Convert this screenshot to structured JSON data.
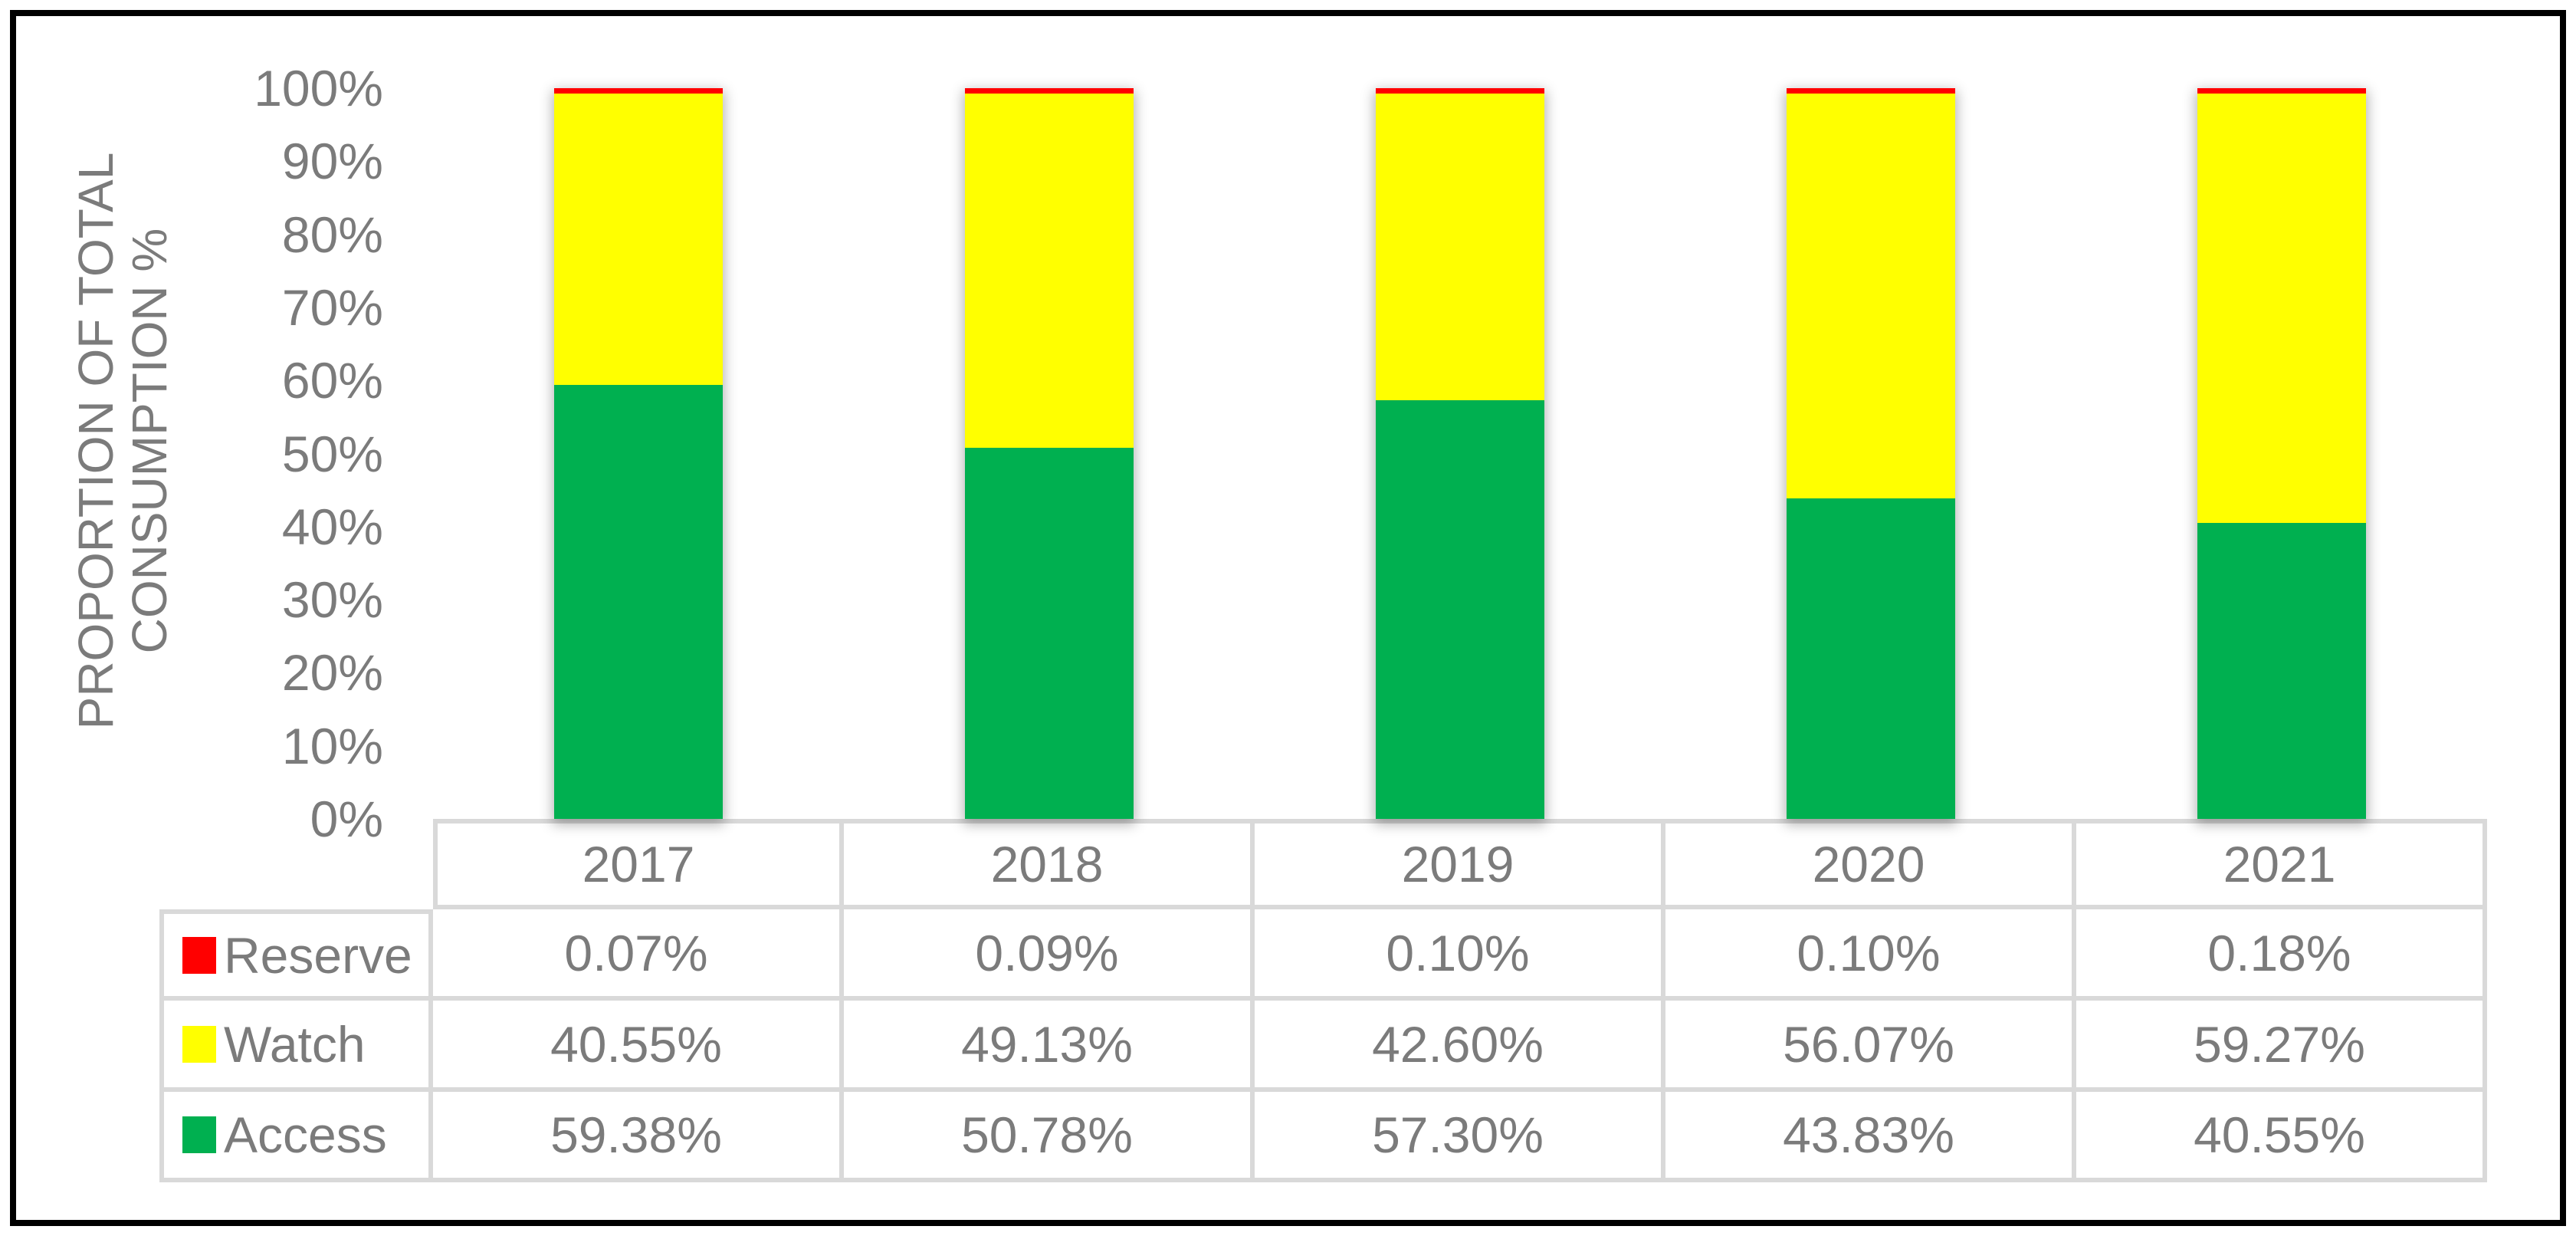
{
  "chart_data": {
    "type": "bar",
    "stacked": true,
    "stack_unit": "percent",
    "title": "",
    "xlabel": "",
    "ylabel": "PROPORTION OF TOTAL CONSUMPTION %",
    "ylabel_lines": [
      "PROPORTION OF TOTAL",
      "CONSUMPTION %"
    ],
    "ylim": [
      0,
      100
    ],
    "ytick_labels": [
      "100%",
      "90%",
      "80%",
      "70%",
      "60%",
      "50%",
      "40%",
      "30%",
      "20%",
      "10%",
      "0%"
    ],
    "grid": false,
    "legend_position": "data-table-left",
    "categories": [
      "2017",
      "2018",
      "2019",
      "2020",
      "2021"
    ],
    "series": [
      {
        "name": "Reserve",
        "color": "#FF0000",
        "values": [
          0.07,
          0.09,
          0.1,
          0.1,
          0.18
        ],
        "labels": [
          "0.07%",
          "0.09%",
          "0.10%",
          "0.10%",
          "0.18%"
        ]
      },
      {
        "name": "Watch",
        "color": "#FFFF00",
        "values": [
          40.55,
          49.13,
          42.6,
          56.07,
          59.27
        ],
        "labels": [
          "40.55%",
          "49.13%",
          "42.60%",
          "56.07%",
          "59.27%"
        ]
      },
      {
        "name": "Access",
        "color": "#00B050",
        "values": [
          59.38,
          50.78,
          57.3,
          43.83,
          40.55
        ],
        "labels": [
          "59.38%",
          "50.78%",
          "57.30%",
          "43.83%",
          "40.55%"
        ]
      }
    ],
    "stack_order_bottom_to_top": [
      "Access",
      "Watch",
      "Reserve"
    ]
  },
  "colors": {
    "text": "#7b7b7b",
    "table_border": "#d9d9d9",
    "frame": "#000000",
    "reserve": "#FF0000",
    "watch": "#FFFF00",
    "access": "#00B050"
  }
}
